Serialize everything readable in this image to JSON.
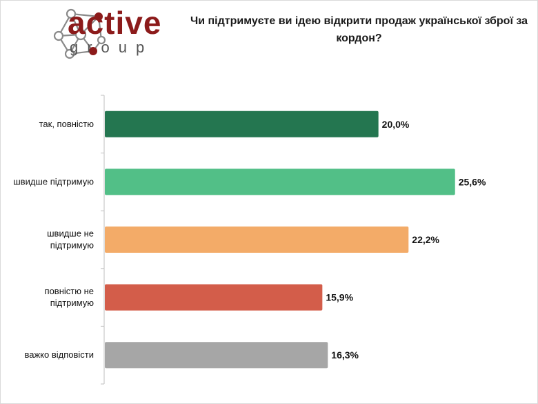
{
  "brand": {
    "name": "active",
    "sub": "group"
  },
  "chart_data": {
    "type": "bar",
    "orientation": "horizontal",
    "title": "Чи підтримуєте ви ідею відкрити продаж української зброї за кордон?",
    "categories": [
      "так, повністю",
      "швидше підтримую",
      "швидше не підтримую",
      "повністю не підтримую",
      "важко відповісти"
    ],
    "category_lines": [
      [
        "так, повністю"
      ],
      [
        "швидше підтримую"
      ],
      [
        "швидше не",
        "підтримую"
      ],
      [
        "повністю не",
        "підтримую"
      ],
      [
        "важко відповісти"
      ]
    ],
    "values": [
      20.0,
      25.6,
      22.2,
      15.9,
      16.3
    ],
    "value_labels": [
      "20,0%",
      "25,6%",
      "22,2%",
      "15,9%",
      "16,3%"
    ],
    "colors": [
      "#247650",
      "#52bf87",
      "#f3ab68",
      "#d35d4a",
      "#a6a6a6"
    ],
    "xlim": [
      0,
      30
    ],
    "grid": false,
    "legend": "none"
  }
}
